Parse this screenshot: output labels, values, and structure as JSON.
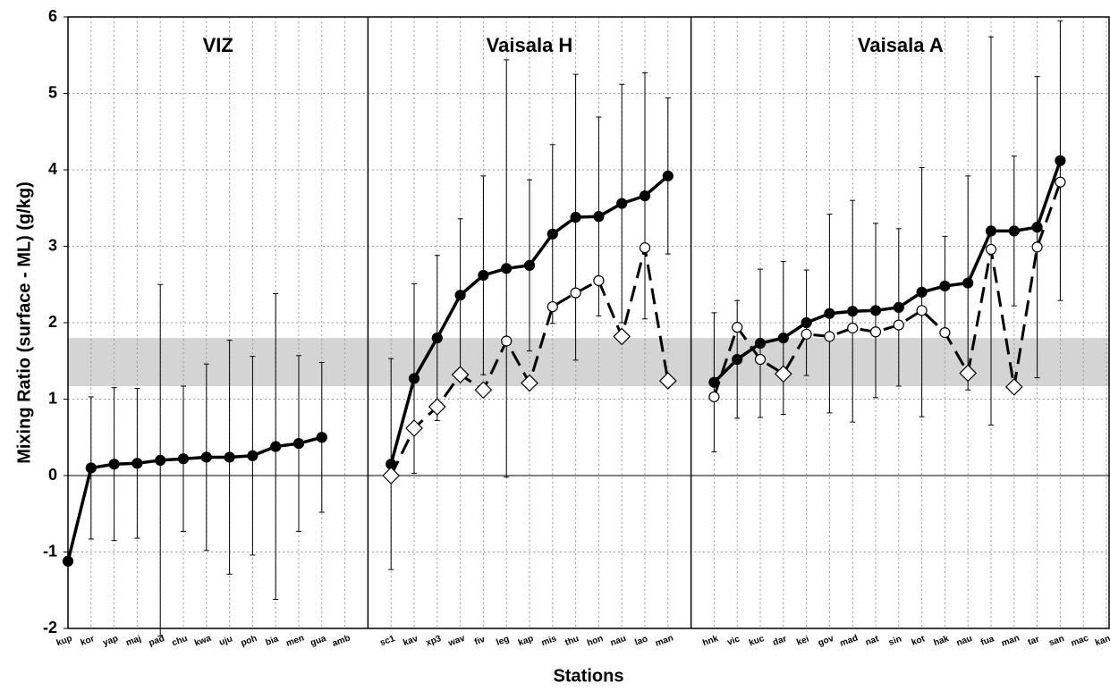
{
  "chart_data": {
    "type": "line",
    "annotations": [
      "VIZ",
      "Vaisala H",
      "Vaisala A"
    ],
    "xlabel": "Stations",
    "ylabel": "Mixing Ratio (surface - ML) (g/kg)",
    "categories": [
      "kup",
      "kor",
      "yap",
      "maj",
      "pad",
      "chu",
      "kwa",
      "uju",
      "poh",
      "bia",
      "men",
      "gua",
      "amb",
      null,
      "sc1",
      "kav",
      "xp3",
      "wav",
      "fiv",
      "leg",
      "kap",
      "mis",
      "thu",
      "hon",
      "nau",
      "lao",
      "man",
      null,
      "hnk",
      "vic",
      "kuc",
      "dar",
      "kei",
      "gov",
      "mad",
      "nat",
      "sin",
      "kot",
      "hak",
      "nau",
      "fua",
      "man",
      "tar",
      "san",
      "mac",
      "kan"
    ],
    "ylim": [
      -2,
      6
    ],
    "yticks": [
      -2,
      -1,
      0,
      1,
      2,
      3,
      4,
      5,
      6
    ],
    "grid": true,
    "band": [
      1.17,
      1.8
    ],
    "band_color": "#d4d4d4",
    "series": [
      {
        "color": "#000000",
        "dash": false,
        "values": [
          -1.12,
          0.1,
          0.15,
          0.16,
          0.2,
          0.22,
          0.24,
          0.24,
          0.26,
          0.38,
          0.42,
          0.5,
          null,
          null,
          0.15,
          1.27,
          1.8,
          2.36,
          2.62,
          2.71,
          2.75,
          3.16,
          3.38,
          3.39,
          3.56,
          3.66,
          3.92,
          null,
          1.22,
          1.52,
          1.73,
          1.8,
          2.0,
          2.12,
          2.15,
          2.16,
          2.2,
          2.4,
          2.48,
          2.52,
          3.2,
          3.2,
          3.25,
          4.12,
          null,
          null
        ],
        "errors": [
          null,
          0.93,
          1.0,
          0.98,
          2.3,
          0.95,
          1.22,
          1.53,
          1.3,
          2.0,
          1.15,
          0.98,
          null,
          null,
          1.38,
          1.24,
          1.08,
          1.0,
          1.3,
          2.73,
          1.12,
          1.17,
          1.87,
          1.3,
          1.56,
          1.61,
          1.02,
          null,
          0.91,
          0.77,
          0.97,
          1.0,
          0.69,
          1.3,
          1.45,
          1.14,
          1.03,
          1.63,
          0.65,
          1.4,
          2.54,
          0.98,
          1.97,
          1.83,
          null,
          null
        ],
        "markers": [
          "circle",
          "circle",
          "circle",
          "circle",
          "circle",
          "circle",
          "circle",
          "circle",
          "circle",
          "circle",
          "circle",
          "circle",
          null,
          null,
          "circle",
          "circle",
          "circle",
          "circle",
          "circle",
          "circle",
          "circle",
          "circle",
          "circle",
          "circle",
          "circle",
          "circle",
          "circle",
          null,
          "circle",
          "circle",
          "circle",
          "circle",
          "circle",
          "circle",
          "circle",
          "circle",
          "circle",
          "circle",
          "circle",
          "circle",
          "circle",
          "circle",
          "circle",
          "circle",
          null,
          null
        ],
        "fill": "#000000"
      },
      {
        "color": "#000000",
        "dash": true,
        "values": [
          null,
          null,
          null,
          null,
          null,
          null,
          null,
          null,
          null,
          null,
          null,
          null,
          null,
          null,
          0.0,
          0.62,
          0.9,
          1.32,
          1.12,
          1.76,
          1.21,
          2.21,
          2.39,
          2.55,
          1.82,
          2.98,
          1.24,
          null,
          1.03,
          1.94,
          1.52,
          1.33,
          1.85,
          1.82,
          1.93,
          1.88,
          1.97,
          2.16,
          1.87,
          1.34,
          2.96,
          1.16,
          2.99,
          3.84,
          null,
          null
        ],
        "markers": [
          null,
          null,
          null,
          null,
          null,
          null,
          null,
          null,
          null,
          null,
          null,
          null,
          null,
          null,
          "diamond",
          "diamond",
          "diamond",
          "diamond",
          "diamond",
          "circle",
          "diamond",
          "circle",
          "circle",
          "circle",
          "diamond",
          "circle",
          "diamond",
          null,
          "circle",
          "circle",
          "circle",
          "diamond",
          "circle",
          "circle",
          "circle",
          "circle",
          "circle",
          "circle",
          "circle",
          "diamond",
          "circle",
          "diamond",
          "circle",
          "circle",
          null,
          null
        ],
        "fill": "#ffffff"
      }
    ]
  }
}
